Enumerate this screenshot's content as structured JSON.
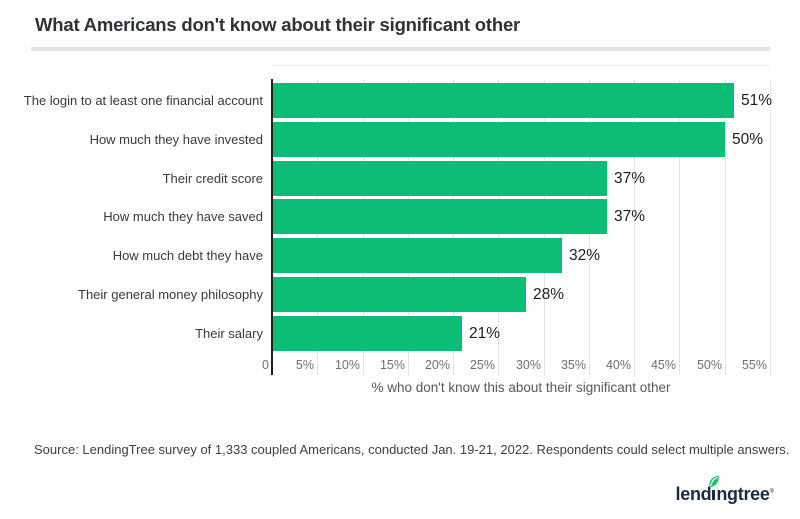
{
  "title": "What Americans don't know about their significant other",
  "chart_data": {
    "type": "bar",
    "orientation": "horizontal",
    "title": "What Americans don't know about their significant other",
    "categories": [
      "The login to at least one financial account",
      "How much they have invested",
      "Their credit score",
      "How much they have saved",
      "How much debt they have",
      "Their general money philosophy",
      "Their salary"
    ],
    "values": [
      51,
      50,
      37,
      37,
      32,
      28,
      21
    ],
    "value_labels": [
      "51%",
      "50%",
      "37%",
      "37%",
      "32%",
      "28%",
      "21%"
    ],
    "xlabel": "% who don't know this about their significant other",
    "ylabel": "",
    "xlim": [
      0,
      55
    ],
    "xticks": [
      0,
      5,
      10,
      15,
      20,
      25,
      30,
      35,
      40,
      45,
      50,
      55
    ],
    "xtick_labels": [
      "0",
      "5%",
      "10%",
      "15%",
      "20%",
      "25%",
      "30%",
      "35%",
      "40%",
      "45%",
      "50%",
      "55%"
    ],
    "grid": true,
    "legend": "none",
    "bar_color": "#0cbd76"
  },
  "source_note": "Source: LendingTree survey of 1,333 coupled Americans, conducted Jan. 19-21, 2022. Respondents could select multiple answers.",
  "logo": {
    "text_before_i": "lend",
    "text_after_i": "ngtree",
    "full_name": "lendingtree",
    "registered_mark": "®"
  },
  "colors": {
    "bar_green": "#0cbd76",
    "leaf_green": "#1fc06a",
    "logo_navy": "#1a2b49",
    "divider_gray": "#e3e3e3"
  }
}
